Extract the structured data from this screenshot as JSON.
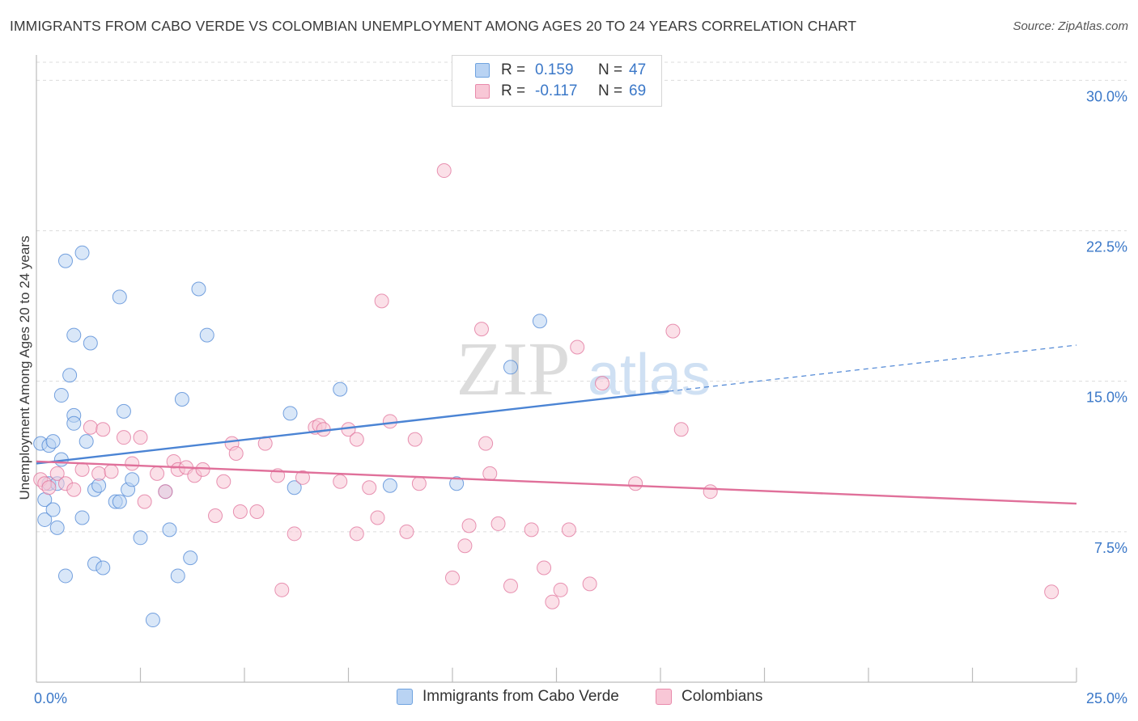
{
  "header": {
    "title": "IMMIGRANTS FROM CABO VERDE VS COLOMBIAN UNEMPLOYMENT AMONG AGES 20 TO 24 YEARS CORRELATION CHART",
    "source": "Source: ZipAtlas.com"
  },
  "watermark": {
    "zip": "ZIP",
    "atlas": "atlas"
  },
  "legend": {
    "rows": [
      {
        "r_label": "R =",
        "r_value": "0.159",
        "n_label": "N =",
        "n_value": "47",
        "color": "#6fa3e0",
        "fill": "#b9d3f3"
      },
      {
        "r_label": "R =",
        "r_value": "-0.117",
        "n_label": "N =",
        "n_value": "69",
        "color": "#e98aab",
        "fill": "#f8c7d6"
      }
    ]
  },
  "bottom_legend": {
    "items": [
      {
        "label": "Immigrants from Cabo Verde",
        "color": "#6fa3e0",
        "fill": "#b9d3f3"
      },
      {
        "label": "Colombians",
        "color": "#e98aab",
        "fill": "#f8c7d6"
      }
    ]
  },
  "chart_data": {
    "type": "scatter",
    "title": "IMMIGRANTS FROM CABO VERDE VS COLOMBIAN UNEMPLOYMENT AMONG AGES 20 TO 24 YEARS CORRELATION CHART",
    "xlabel": "",
    "ylabel": "Unemployment Among Ages 20 to 24 years",
    "xlim": [
      0,
      25
    ],
    "ylim": [
      0,
      30.9
    ],
    "x_tick_labels": [
      "0.0%",
      "25.0%"
    ],
    "y_ticks": [
      7.5,
      15.0,
      22.5,
      30.0
    ],
    "y_tick_labels": [
      "7.5%",
      "15.0%",
      "22.5%",
      "30.0%"
    ],
    "grid": true,
    "series": [
      {
        "name": "Immigrants from Cabo Verde",
        "color": "#4b84d4",
        "fill": "#b9d3f3",
        "trend": {
          "x_start": 0,
          "y_start": 10.9,
          "x_end": 15.2,
          "y_end": 14.5,
          "x_dash_end": 25,
          "y_dash_end": 16.8
        },
        "points": [
          [
            0.1,
            11.9
          ],
          [
            0.3,
            9.9
          ],
          [
            0.2,
            8.1
          ],
          [
            0.2,
            9.1
          ],
          [
            0.3,
            11.8
          ],
          [
            0.4,
            8.6
          ],
          [
            0.4,
            12.0
          ],
          [
            0.5,
            7.7
          ],
          [
            0.5,
            9.9
          ],
          [
            0.6,
            11.1
          ],
          [
            0.6,
            14.3
          ],
          [
            0.7,
            5.3
          ],
          [
            0.7,
            21.0
          ],
          [
            0.8,
            15.3
          ],
          [
            0.9,
            17.3
          ],
          [
            0.9,
            13.3
          ],
          [
            0.9,
            12.9
          ],
          [
            1.1,
            8.2
          ],
          [
            1.1,
            21.4
          ],
          [
            1.2,
            12.0
          ],
          [
            1.3,
            16.9
          ],
          [
            1.4,
            9.6
          ],
          [
            1.4,
            5.9
          ],
          [
            1.5,
            9.8
          ],
          [
            1.6,
            5.7
          ],
          [
            1.9,
            9.0
          ],
          [
            2.0,
            19.2
          ],
          [
            2.0,
            9.0
          ],
          [
            2.1,
            13.5
          ],
          [
            2.2,
            9.6
          ],
          [
            2.3,
            10.1
          ],
          [
            2.5,
            7.2
          ],
          [
            2.8,
            3.1
          ],
          [
            3.1,
            9.5
          ],
          [
            3.2,
            7.6
          ],
          [
            3.4,
            5.3
          ],
          [
            3.5,
            14.1
          ],
          [
            3.7,
            6.2
          ],
          [
            3.9,
            19.6
          ],
          [
            4.1,
            17.3
          ],
          [
            6.1,
            13.4
          ],
          [
            6.2,
            9.7
          ],
          [
            7.3,
            14.6
          ],
          [
            8.5,
            9.8
          ],
          [
            10.1,
            9.9
          ],
          [
            11.4,
            15.7
          ],
          [
            12.1,
            18.0
          ]
        ]
      },
      {
        "name": "Colombians",
        "color": "#e0709a",
        "fill": "#f8c7d6",
        "trend": {
          "x_start": 0,
          "y_start": 11.0,
          "x_end": 25,
          "y_end": 8.9
        },
        "points": [
          [
            0.1,
            10.1
          ],
          [
            0.2,
            9.9
          ],
          [
            0.3,
            9.7
          ],
          [
            0.5,
            10.4
          ],
          [
            0.7,
            9.9
          ],
          [
            0.9,
            9.6
          ],
          [
            1.1,
            10.6
          ],
          [
            1.3,
            12.7
          ],
          [
            1.5,
            10.4
          ],
          [
            1.6,
            12.6
          ],
          [
            1.8,
            10.5
          ],
          [
            2.1,
            12.2
          ],
          [
            2.3,
            10.9
          ],
          [
            2.5,
            12.2
          ],
          [
            2.6,
            9.0
          ],
          [
            2.9,
            10.4
          ],
          [
            3.1,
            9.5
          ],
          [
            3.3,
            11.0
          ],
          [
            3.4,
            10.6
          ],
          [
            3.6,
            10.7
          ],
          [
            3.8,
            10.3
          ],
          [
            4.0,
            10.6
          ],
          [
            4.3,
            8.3
          ],
          [
            4.5,
            10.0
          ],
          [
            4.7,
            11.9
          ],
          [
            4.8,
            11.4
          ],
          [
            4.9,
            8.5
          ],
          [
            5.3,
            8.5
          ],
          [
            5.5,
            11.9
          ],
          [
            5.8,
            10.3
          ],
          [
            5.9,
            4.6
          ],
          [
            6.2,
            7.4
          ],
          [
            6.4,
            10.2
          ],
          [
            6.7,
            12.7
          ],
          [
            6.8,
            12.8
          ],
          [
            6.9,
            12.6
          ],
          [
            7.3,
            10.0
          ],
          [
            7.5,
            12.6
          ],
          [
            7.7,
            12.1
          ],
          [
            7.7,
            7.4
          ],
          [
            8.0,
            9.7
          ],
          [
            8.2,
            8.2
          ],
          [
            8.3,
            19.0
          ],
          [
            8.5,
            13.0
          ],
          [
            8.9,
            7.5
          ],
          [
            9.1,
            12.1
          ],
          [
            9.2,
            9.9
          ],
          [
            9.8,
            25.5
          ],
          [
            10.0,
            5.2
          ],
          [
            10.3,
            6.8
          ],
          [
            10.4,
            7.8
          ],
          [
            10.7,
            17.6
          ],
          [
            10.8,
            11.9
          ],
          [
            10.9,
            10.4
          ],
          [
            11.1,
            7.9
          ],
          [
            11.4,
            4.8
          ],
          [
            11.9,
            7.6
          ],
          [
            12.2,
            5.7
          ],
          [
            12.4,
            4.0
          ],
          [
            12.6,
            4.6
          ],
          [
            12.8,
            7.6
          ],
          [
            13.0,
            16.7
          ],
          [
            13.3,
            4.9
          ],
          [
            13.6,
            14.9
          ],
          [
            14.4,
            9.9
          ],
          [
            15.3,
            17.5
          ],
          [
            15.5,
            12.6
          ],
          [
            16.2,
            9.5
          ],
          [
            24.4,
            4.5
          ]
        ]
      }
    ]
  }
}
